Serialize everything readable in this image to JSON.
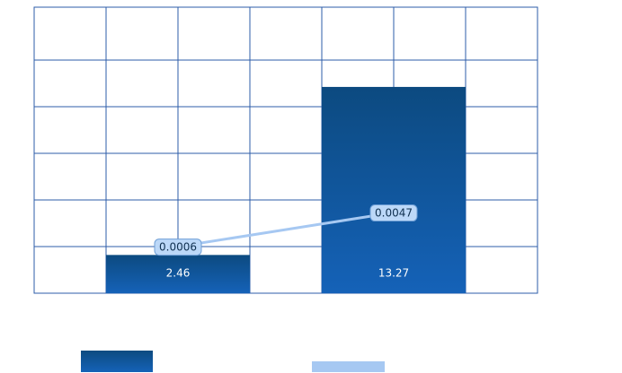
{
  "chart_data": {
    "type": "bar",
    "categories": [
      null,
      null
    ],
    "series": [
      {
        "type": "bar",
        "color": "#0f55a0",
        "values": [
          2.46,
          13.27
        ]
      },
      {
        "type": "line",
        "axis": "y2",
        "color": "#a6c8f2",
        "values": [
          0.0006,
          0.0047
        ]
      }
    ],
    "ylim": [
      0,
      18.4
    ],
    "yticks": [
      0,
      3,
      6,
      9,
      12,
      15
    ],
    "y2lim": [
      -0.005,
      0.0294
    ],
    "grid": true,
    "legend": "bottom"
  }
}
